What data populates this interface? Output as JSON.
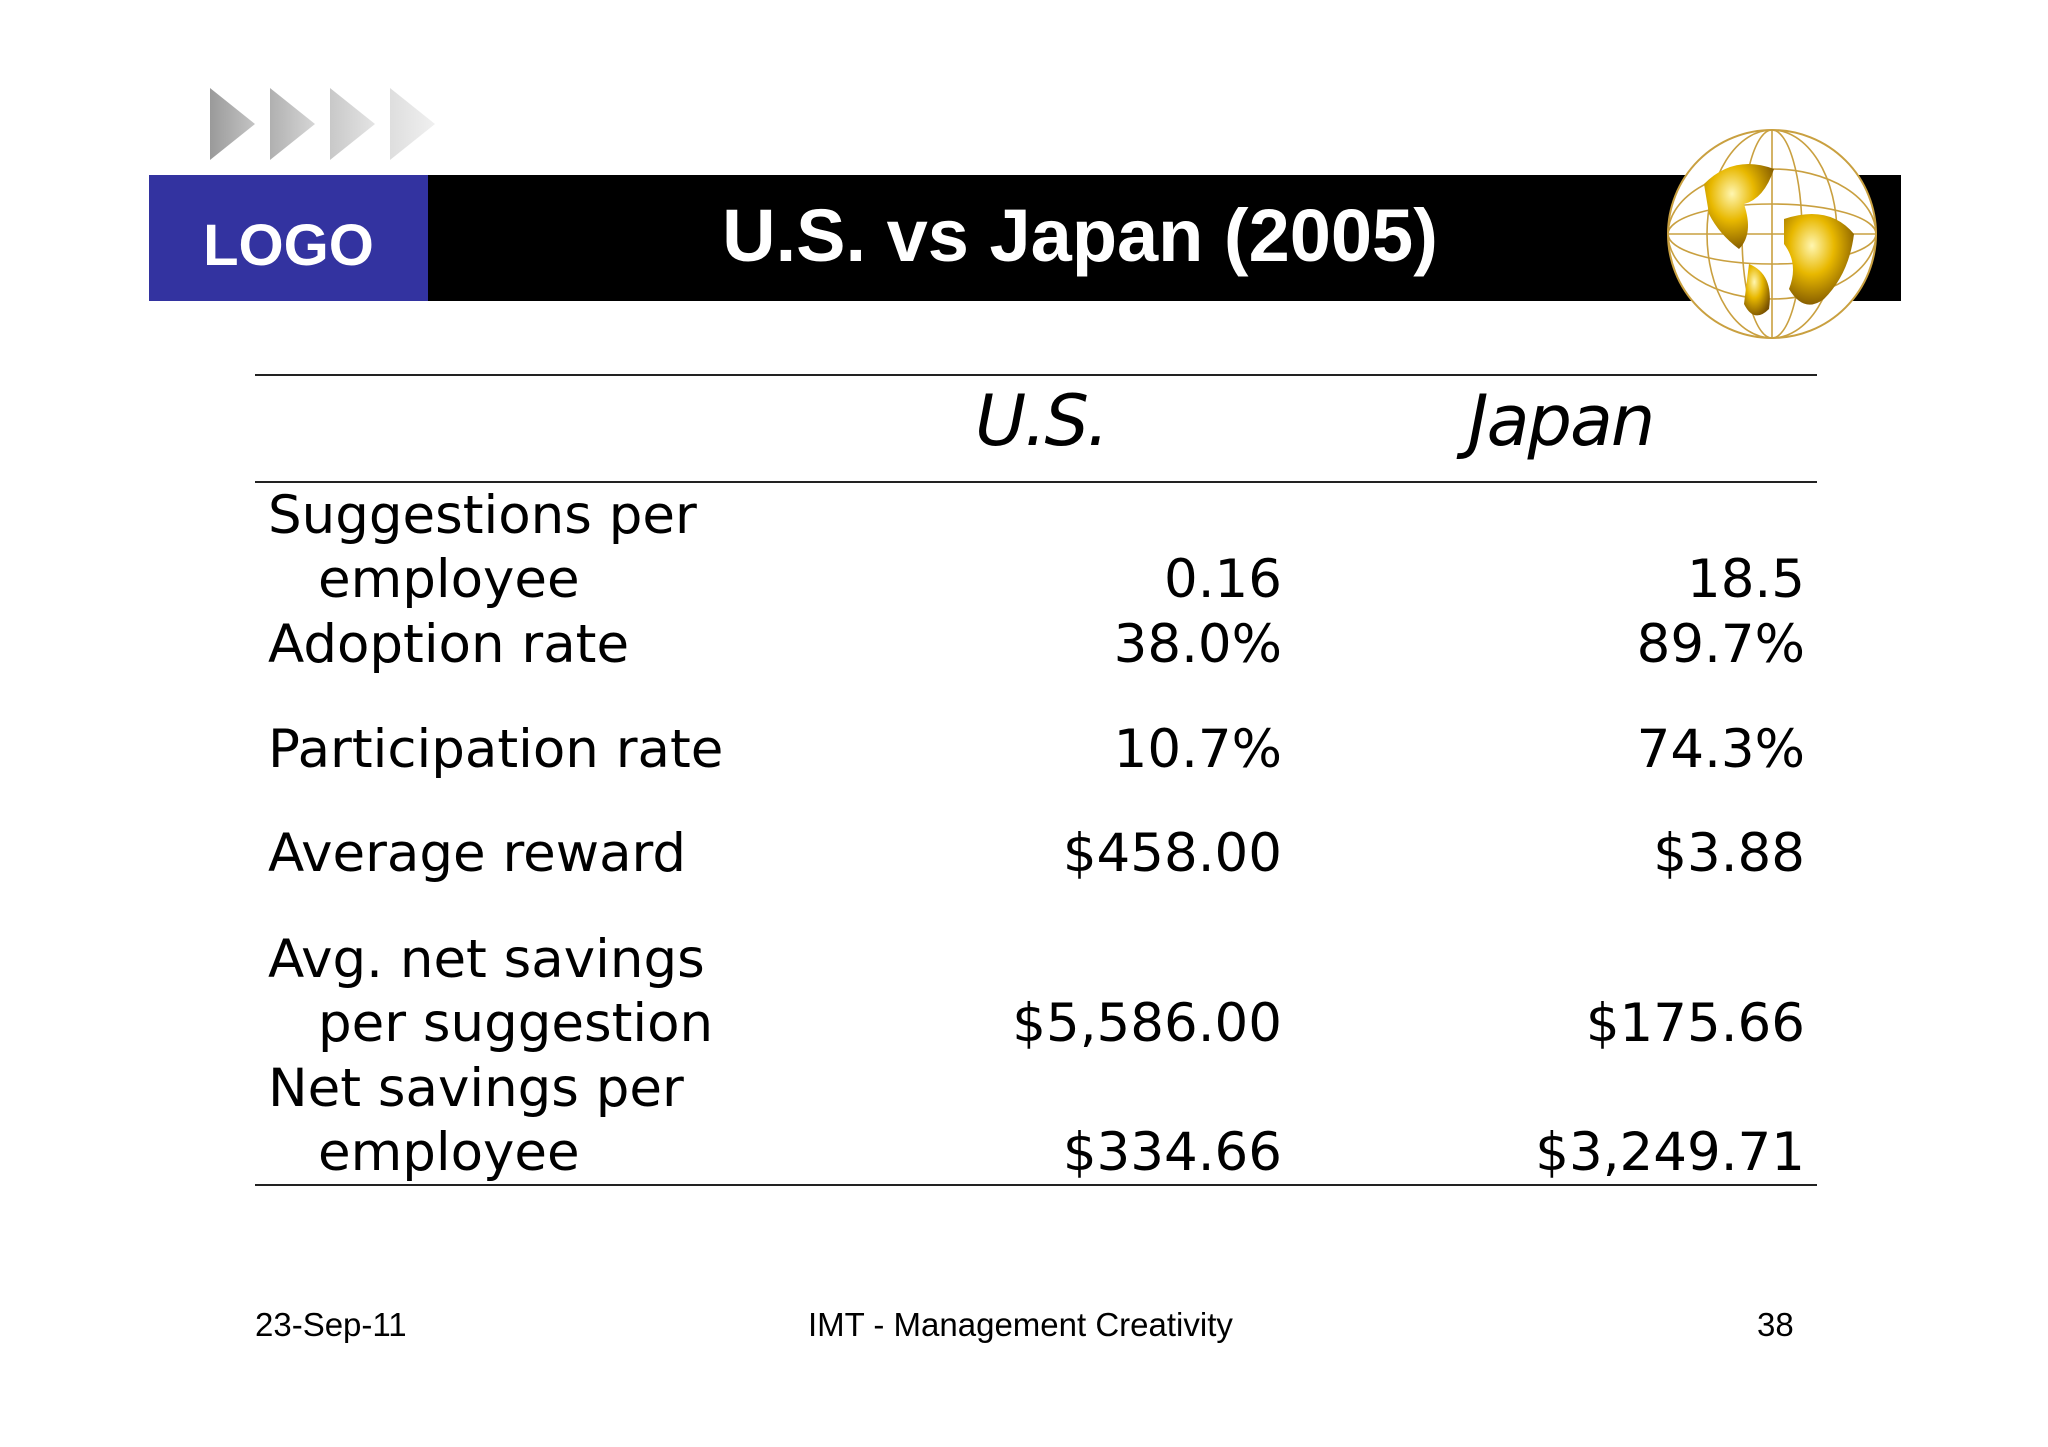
{
  "header": {
    "logo_text": "LOGO",
    "title": "U.S. vs Japan (2005)",
    "globe_icon": "globe-icon",
    "arrows_icon": "arrow-chevrons-icon"
  },
  "colors": {
    "logo_bg": "#3333a0",
    "title_bar_bg": "#000000",
    "globe_gold": "#e8b800"
  },
  "table": {
    "columns": [
      "U.S.",
      "Japan"
    ],
    "rows": [
      {
        "label_line1": "Suggestions per",
        "label_line2": "employee",
        "us": "0.16",
        "japan": "18.5"
      },
      {
        "label_line1": "Adoption rate",
        "label_line2": "",
        "us": "38.0%",
        "japan": "89.7%"
      },
      {
        "label_line1": "Participation rate",
        "label_line2": "",
        "us": "10.7%",
        "japan": "74.3%"
      },
      {
        "label_line1": "Average reward",
        "label_line2": "",
        "us": "$458.00",
        "japan": "$3.88"
      },
      {
        "label_line1": "Avg. net savings",
        "label_line2": "per suggestion",
        "us": "$5,586.00",
        "japan": "$175.66"
      },
      {
        "label_line1": "Net savings per",
        "label_line2": "employee",
        "us": "$334.66",
        "japan": "$3,249.71"
      }
    ]
  },
  "footer": {
    "date": "23-Sep-11",
    "center": "IMT - Management Creativity",
    "page_number": "38"
  }
}
